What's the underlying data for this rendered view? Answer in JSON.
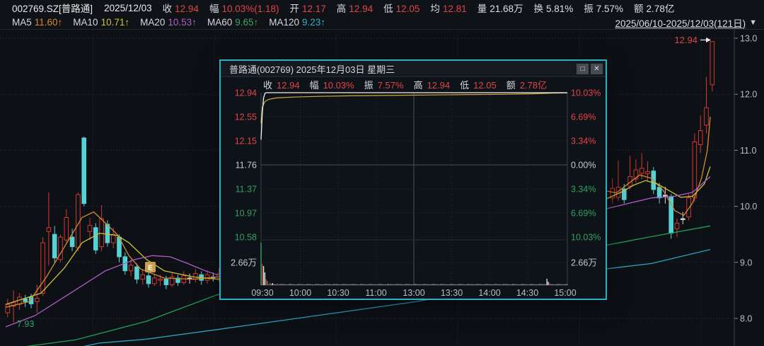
{
  "topbar": {
    "symbol": "002769.SZ[普路通]",
    "date": "2025/12/03",
    "stats": [
      {
        "label": "收",
        "value": "12.94",
        "color": "red"
      },
      {
        "label": "幅",
        "value": "10.03%(1.18)",
        "color": "red"
      },
      {
        "label": "开",
        "value": "12.17",
        "color": "red"
      },
      {
        "label": "高",
        "value": "12.94",
        "color": "red"
      },
      {
        "label": "低",
        "value": "12.05",
        "color": "red"
      },
      {
        "label": "均",
        "value": "12.81",
        "color": "red"
      },
      {
        "label": "量",
        "value": "21.68万",
        "color": "white"
      },
      {
        "label": "换",
        "value": "5.81%",
        "color": "white"
      },
      {
        "label": "振",
        "value": "7.57%",
        "color": "white"
      },
      {
        "label": "额",
        "value": "2.78亿",
        "color": "white"
      }
    ]
  },
  "ma_bar": {
    "items": [
      {
        "label": "MA5",
        "value": "11.60↑",
        "color": "#d9882f"
      },
      {
        "label": "MA10",
        "value": "10.71↑",
        "color": "#cdc238"
      },
      {
        "label": "MA20",
        "value": "10.53↑",
        "color": "#b15cc9"
      },
      {
        "label": "MA60",
        "value": "9.65↑",
        "color": "#3ba264"
      },
      {
        "label": "MA120",
        "value": "9.23↑",
        "color": "#35aec8"
      }
    ],
    "range": "2025/06/10-2025/12/03(121日)",
    "dropdown_icon": "▼"
  },
  "popup": {
    "title": "普路通(002769) 2025年12月03日 星期三",
    "buttons": {
      "maximize": "□",
      "close": "✕"
    },
    "stats": [
      {
        "label": "收",
        "value": "12.94"
      },
      {
        "label": "幅",
        "value": "10.03%"
      },
      {
        "label": "振",
        "value": "7.57%"
      },
      {
        "label": "高",
        "value": "12.94"
      },
      {
        "label": "低",
        "value": "12.05"
      },
      {
        "label": "额",
        "value": "2.78亿"
      }
    ],
    "axis": {
      "left": [
        "12.94",
        "12.55",
        "12.15",
        "11.76",
        "11.37",
        "10.97",
        "10.58"
      ],
      "right": [
        "10.03%",
        "6.69%",
        "3.34%",
        "0.00%",
        "3.34%",
        "6.69%",
        "10.03%"
      ],
      "colors": [
        "r",
        "r",
        "r",
        "w",
        "g",
        "g",
        "g"
      ],
      "vol_label": "2.66万",
      "times": [
        "09:30",
        "10:00",
        "10:30",
        "11:00",
        "13:00",
        "13:30",
        "14:00",
        "14:30",
        "15:00"
      ]
    }
  },
  "chart_data": [
    {
      "type": "candlestick",
      "symbol": "002769.SZ 普路通",
      "date_range": "2025/06/10-2025/12/03",
      "days": 121,
      "ylim": [
        7.4,
        13.05
      ],
      "y_ticks": [
        {
          "label": "13.0",
          "value": 13.0
        },
        {
          "label": "12.0",
          "value": 12.0
        },
        {
          "label": "11.0",
          "value": 11.0
        },
        {
          "label": "10.0",
          "value": 10.0
        },
        {
          "label": "9.0",
          "value": 9.0
        },
        {
          "label": "8.0",
          "value": 8.0
        }
      ],
      "annotations": {
        "last_price": "12.94",
        "low_label": "7.93",
        "event_badge": "E"
      },
      "white_doji_days": [
        31,
        35,
        112,
        115
      ],
      "candles": [
        [
          0,
          8.1,
          8.35,
          8.02,
          8.25
        ],
        [
          1,
          8.22,
          8.5,
          7.93,
          8.28
        ],
        [
          2,
          8.25,
          8.45,
          8.15,
          8.38
        ],
        [
          3,
          8.35,
          8.42,
          8.2,
          8.3
        ],
        [
          4,
          8.38,
          8.44,
          8.18,
          8.26
        ],
        [
          5,
          8.3,
          8.6,
          8.1,
          8.36
        ],
        [
          6,
          8.45,
          9.45,
          8.4,
          9.35
        ],
        [
          7,
          9.55,
          10.25,
          8.95,
          9.62
        ],
        [
          8,
          9.5,
          9.65,
          9.0,
          9.08
        ],
        [
          9,
          9.05,
          9.5,
          9.0,
          9.45
        ],
        [
          10,
          9.4,
          9.95,
          9.35,
          9.8
        ],
        [
          11,
          9.45,
          9.6,
          9.2,
          9.28
        ],
        [
          12,
          9.26,
          10.25,
          9.2,
          10.21
        ],
        [
          13,
          11.22,
          11.24,
          10.0,
          10.05
        ],
        [
          14,
          9.55,
          9.8,
          9.4,
          9.66
        ],
        [
          15,
          9.62,
          9.7,
          9.15,
          9.22
        ],
        [
          16,
          9.28,
          10.02,
          9.2,
          9.78
        ],
        [
          17,
          9.68,
          9.75,
          9.28,
          9.35
        ],
        [
          18,
          9.35,
          9.62,
          9.25,
          9.5
        ],
        [
          19,
          9.45,
          9.5,
          9.0,
          9.1
        ],
        [
          20,
          9.1,
          9.18,
          8.78,
          8.85
        ],
        [
          21,
          8.85,
          9.05,
          8.75,
          8.95
        ],
        [
          22,
          8.92,
          8.98,
          8.62,
          8.7
        ],
        [
          23,
          8.7,
          8.88,
          8.6,
          8.78
        ],
        [
          24,
          8.76,
          8.82,
          8.55,
          8.62
        ],
        [
          25,
          8.62,
          8.8,
          8.58,
          8.72
        ],
        [
          26,
          8.68,
          8.78,
          8.58,
          8.7
        ],
        [
          27,
          8.7,
          8.76,
          8.52,
          8.6
        ],
        [
          28,
          8.6,
          8.82,
          8.56,
          8.74
        ],
        [
          29,
          8.72,
          8.78,
          8.58,
          8.64
        ],
        [
          30,
          8.64,
          8.84,
          8.6,
          8.76
        ],
        [
          31,
          8.72,
          8.8,
          8.62,
          8.72
        ],
        [
          32,
          8.7,
          8.88,
          8.64,
          8.8
        ],
        [
          33,
          8.78,
          8.84,
          8.6,
          8.68
        ],
        [
          34,
          8.68,
          8.86,
          8.62,
          8.78
        ],
        [
          35,
          8.74,
          8.82,
          8.66,
          8.74
        ],
        [
          36,
          8.72,
          8.9,
          8.66,
          8.8
        ],
        [
          103,
          10.15,
          10.5,
          10.05,
          10.32
        ],
        [
          104,
          10.16,
          10.82,
          10.1,
          10.34
        ],
        [
          105,
          10.31,
          10.4,
          10.05,
          10.12
        ],
        [
          106,
          10.36,
          10.9,
          10.3,
          10.53
        ],
        [
          107,
          10.49,
          10.84,
          10.42,
          10.65
        ],
        [
          108,
          10.59,
          10.95,
          10.48,
          10.68
        ],
        [
          109,
          10.58,
          10.8,
          10.45,
          10.62
        ],
        [
          110,
          10.63,
          10.7,
          10.22,
          10.3
        ],
        [
          111,
          10.34,
          10.42,
          10.05,
          10.15
        ],
        [
          112,
          10.2,
          10.35,
          10.05,
          10.2
        ],
        [
          113,
          10.17,
          10.22,
          9.42,
          9.52
        ],
        [
          114,
          9.6,
          9.78,
          9.45,
          9.7
        ],
        [
          115,
          9.78,
          9.9,
          9.68,
          9.78
        ],
        [
          116,
          9.81,
          10.22,
          9.75,
          10.15
        ],
        [
          117,
          10.15,
          11.3,
          10.08,
          11.15
        ],
        [
          118,
          11.1,
          11.62,
          10.95,
          11.35
        ],
        [
          119,
          11.45,
          12.31,
          11.3,
          11.76
        ],
        [
          120,
          12.17,
          12.94,
          12.05,
          12.94
        ]
      ],
      "ma_series": [
        {
          "name": "MA5",
          "color": "#d9882f",
          "points": [
            [
              0,
              8.2
            ],
            [
              4,
              8.3
            ],
            [
              7,
              8.75
            ],
            [
              11,
              9.45
            ],
            [
              13,
              9.8
            ],
            [
              15,
              9.9
            ],
            [
              17,
              9.7
            ],
            [
              19,
              9.5
            ],
            [
              21,
              9.12
            ],
            [
              23,
              8.88
            ],
            [
              27,
              8.72
            ],
            [
              32,
              8.7
            ],
            [
              36,
              8.74
            ],
            [
              60,
              8.9
            ],
            [
              102,
              10.28
            ],
            [
              104,
              10.24
            ],
            [
              106,
              10.4
            ],
            [
              108,
              10.56
            ],
            [
              110,
              10.5
            ],
            [
              112,
              10.28
            ],
            [
              114,
              9.92
            ],
            [
              115.5,
              9.84
            ],
            [
              117,
              10.06
            ],
            [
              118.5,
              10.5
            ],
            [
              119.5,
              11.0
            ],
            [
              120,
              11.6
            ]
          ]
        },
        {
          "name": "MA10",
          "color": "#cdc238",
          "points": [
            [
              0,
              8.25
            ],
            [
              6,
              8.45
            ],
            [
              10,
              8.9
            ],
            [
              13,
              9.35
            ],
            [
              16,
              9.52
            ],
            [
              19,
              9.48
            ],
            [
              21,
              9.35
            ],
            [
              24,
              9.05
            ],
            [
              27,
              8.85
            ],
            [
              32,
              8.74
            ],
            [
              36,
              8.7
            ],
            [
              60,
              8.85
            ],
            [
              102,
              10.12
            ],
            [
              105,
              10.26
            ],
            [
              107,
              10.38
            ],
            [
              109,
              10.46
            ],
            [
              111,
              10.4
            ],
            [
              113,
              10.28
            ],
            [
              115,
              10.16
            ],
            [
              117,
              10.18
            ],
            [
              119,
              10.4
            ],
            [
              120,
              10.71
            ]
          ]
        },
        {
          "name": "MA20",
          "color": "#b15cc9",
          "points": [
            [
              0,
              7.85
            ],
            [
              5,
              8.05
            ],
            [
              11,
              8.45
            ],
            [
              17,
              8.85
            ],
            [
              22,
              9.05
            ],
            [
              25,
              9.12
            ],
            [
              28,
              9.1
            ],
            [
              31,
              8.98
            ],
            [
              34,
              8.85
            ],
            [
              36,
              8.78
            ],
            [
              50,
              8.6
            ],
            [
              70,
              8.55
            ],
            [
              90,
              9.2
            ],
            [
              102,
              9.95
            ],
            [
              106,
              10.05
            ],
            [
              110,
              10.15
            ],
            [
              114,
              10.18
            ],
            [
              117,
              10.25
            ],
            [
              120,
              10.53
            ]
          ]
        },
        {
          "name": "MA60",
          "color": "#1fa05a",
          "points": [
            [
              0,
              7.45
            ],
            [
              12,
              7.62
            ],
            [
              24,
              7.95
            ],
            [
              36,
              8.42
            ],
            [
              70,
              8.85
            ],
            [
              102,
              9.3
            ],
            [
              110,
              9.46
            ],
            [
              120,
              9.65
            ]
          ]
        },
        {
          "name": "MA120",
          "color": "#2fa0bc",
          "points": [
            [
              11,
              7.45
            ],
            [
              16,
              7.56
            ],
            [
              24,
              7.63
            ],
            [
              36,
              7.8
            ],
            [
              70,
              8.3
            ],
            [
              102,
              8.88
            ],
            [
              110,
              8.98
            ],
            [
              120,
              9.23
            ]
          ]
        }
      ]
    },
    {
      "type": "line",
      "title": "普路通(002769) 2025年12月03日 星期三 分时",
      "pct_range": [
        -10.03,
        10.03
      ],
      "prev_close": 11.76,
      "minutes": 240,
      "price_line_pct": [
        [
          0,
          3.49
        ],
        [
          1,
          7.2
        ],
        [
          2,
          9.3
        ],
        [
          3,
          9.9
        ],
        [
          4,
          10.03
        ],
        [
          120,
          10.03
        ],
        [
          236,
          10.03
        ],
        [
          240,
          10.03
        ]
      ],
      "avg_line_pct": [
        [
          0,
          5.8
        ],
        [
          1,
          8.0
        ],
        [
          3,
          8.8
        ],
        [
          6,
          9.1
        ],
        [
          12,
          9.3
        ],
        [
          25,
          9.42
        ],
        [
          45,
          9.52
        ],
        [
          70,
          9.6
        ],
        [
          110,
          9.68
        ],
        [
          150,
          9.74
        ],
        [
          190,
          9.8
        ],
        [
          215,
          9.88
        ],
        [
          228,
          9.96
        ],
        [
          240,
          10.0
        ]
      ],
      "volume_bars": [
        [
          0,
          1.0,
          "g"
        ],
        [
          1,
          0.5,
          "r"
        ],
        [
          2,
          0.45,
          "w"
        ],
        [
          3,
          0.3,
          "w"
        ],
        [
          4,
          0.14,
          "r"
        ],
        [
          5,
          0.1,
          "g"
        ],
        [
          7,
          0.06,
          "r"
        ],
        [
          9,
          0.05,
          "w"
        ],
        [
          13,
          0.04,
          "r"
        ],
        [
          224,
          0.15,
          "w"
        ],
        [
          225,
          0.08,
          "w"
        ],
        [
          226,
          0.05,
          "r"
        ]
      ]
    }
  ]
}
